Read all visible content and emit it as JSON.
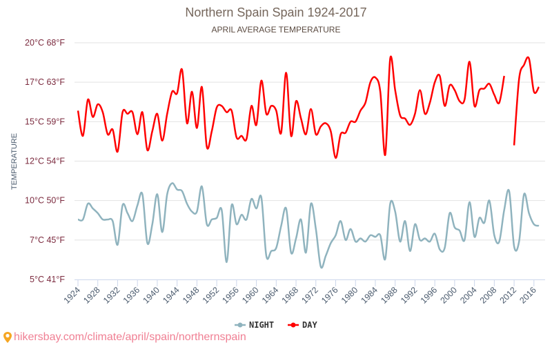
{
  "chart_data": {
    "type": "line",
    "title": "Northern Spain Spain 1924-2017",
    "subtitle": "APRIL AVERAGE TEMPERATURE",
    "xlabel": "",
    "ylabel": "TEMPERATURE",
    "xlim": [
      1924,
      2017
    ],
    "ylim": [
      5,
      20
    ],
    "grid": true,
    "legend_position": "bottom-center",
    "y_ticks": [
      {
        "value": 5,
        "label": "5°C 41°F"
      },
      {
        "value": 7.5,
        "label": "7°C 45°F"
      },
      {
        "value": 10,
        "label": "10°C 50°F"
      },
      {
        "value": 12.5,
        "label": "12°C 54°F"
      },
      {
        "value": 15,
        "label": "15°C 59°F"
      },
      {
        "value": 17.5,
        "label": "17°C 63°F"
      },
      {
        "value": 20,
        "label": "20°C 68°F"
      }
    ],
    "x_ticks": [
      "1924",
      "1928",
      "1932",
      "1936",
      "1940",
      "1944",
      "1948",
      "1952",
      "1956",
      "1960",
      "1964",
      "1968",
      "1972",
      "1976",
      "1980",
      "1984",
      "1988",
      "1992",
      "1996",
      "2000",
      "2004",
      "2008",
      "2012",
      "2016"
    ],
    "x": [
      1924,
      1925,
      1926,
      1927,
      1928,
      1929,
      1930,
      1931,
      1932,
      1933,
      1934,
      1935,
      1936,
      1937,
      1938,
      1939,
      1940,
      1941,
      1942,
      1943,
      1944,
      1945,
      1946,
      1947,
      1948,
      1949,
      1950,
      1951,
      1952,
      1953,
      1954,
      1955,
      1956,
      1957,
      1958,
      1959,
      1960,
      1961,
      1962,
      1963,
      1964,
      1965,
      1966,
      1967,
      1968,
      1969,
      1970,
      1971,
      1972,
      1973,
      1974,
      1975,
      1976,
      1977,
      1978,
      1979,
      1980,
      1981,
      1982,
      1983,
      1984,
      1985,
      1986,
      1987,
      1988,
      1989,
      1990,
      1991,
      1992,
      1993,
      1994,
      1995,
      1996,
      1997,
      1998,
      1999,
      2000,
      2001,
      2002,
      2003,
      2004,
      2005,
      2006,
      2007,
      2008,
      2009,
      2010,
      2011,
      2012,
      2013,
      2014,
      2015,
      2016,
      2017
    ],
    "series": [
      {
        "name": "NIGHT",
        "color": "#8fb3be",
        "values": [
          8.8,
          8.8,
          9.8,
          9.5,
          9.2,
          8.8,
          8.8,
          8.7,
          7.2,
          9.7,
          9.2,
          8.7,
          9.7,
          10.4,
          7.3,
          8.5,
          10.4,
          8.0,
          10.4,
          11.1,
          10.7,
          10.6,
          9.8,
          9.3,
          9.3,
          10.9,
          8.5,
          8.8,
          8.9,
          9.4,
          6.1,
          9.7,
          8.5,
          9.1,
          8.8,
          10.1,
          9.5,
          10.2,
          6.5,
          6.8,
          7.0,
          8.4,
          9.5,
          6.7,
          7.6,
          8.8,
          6.7,
          9.8,
          8.2,
          5.8,
          6.5,
          7.3,
          7.8,
          8.7,
          7.5,
          8.2,
          7.4,
          7.6,
          7.4,
          7.8,
          7.7,
          7.8,
          6.3,
          9.8,
          9.3,
          7.4,
          8.7,
          6.8,
          8.5,
          7.5,
          7.6,
          7.4,
          7.9,
          6.9,
          7.0,
          9.2,
          8.3,
          8.1,
          7.5,
          9.9,
          7.7,
          8.9,
          8.6,
          10.0,
          7.8,
          7.4,
          9.4,
          10.6,
          7.1,
          7.4,
          10.4,
          9.2,
          8.5,
          8.4
        ]
      },
      {
        "name": "DAY",
        "color": "#ff0000",
        "values": [
          15.7,
          14.1,
          16.4,
          15.3,
          16.1,
          15.6,
          14.2,
          14.5,
          13.1,
          15.6,
          15.5,
          15.6,
          14.2,
          15.6,
          13.2,
          14.4,
          15.5,
          13.8,
          15.5,
          16.9,
          16.8,
          18.3,
          14.9,
          16.9,
          14.6,
          17.2,
          13.4,
          14.4,
          15.9,
          16.0,
          15.6,
          15.7,
          14.0,
          14.1,
          13.9,
          16.0,
          14.8,
          17.6,
          15.5,
          16.0,
          15.7,
          14.3,
          18.1,
          14.1,
          16.3,
          15.2,
          14.2,
          15.8,
          14.2,
          14.7,
          14.9,
          14.4,
          12.7,
          14.2,
          14.3,
          15.0,
          15.0,
          15.7,
          16.2,
          17.5,
          17.8,
          16.9,
          12.9,
          19.0,
          17.0,
          15.4,
          15.2,
          14.8,
          15.5,
          17.0,
          15.5,
          16.2,
          17.5,
          17.9,
          16.0,
          17.3,
          17.0,
          16.3,
          16.4,
          18.8,
          16.0,
          17.0,
          17.1,
          17.4,
          16.7,
          16.2,
          17.9,
          null,
          13.5,
          17.7,
          18.6,
          19.0,
          16.9,
          17.2
        ]
      }
    ]
  },
  "footer": {
    "url": "hikersbay.com/climate/april/spain/northernspain",
    "pin_icon": "location-pin-icon"
  }
}
